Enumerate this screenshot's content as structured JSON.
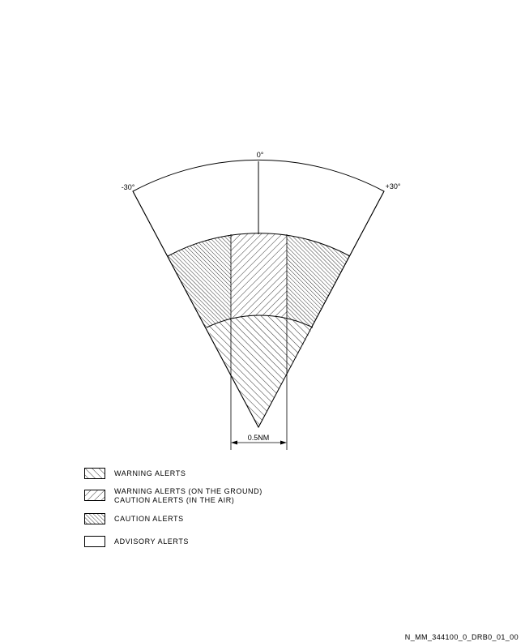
{
  "angles": {
    "center": "0°",
    "left": "-30°",
    "right": "+30°"
  },
  "dimension_label": "0.5NM",
  "legend": {
    "warning": "WARNING ALERTS",
    "warning_ground_line1": "WARNING ALERTS (ON THE GROUND)",
    "warning_ground_line2": "CAUTION ALERTS (IN THE AIR)",
    "caution": "CAUTION ALERTS",
    "advisory": "ADVISORY ALERTS"
  },
  "figure_ref": "N_MM_344100_0_DRB0_01_00"
}
